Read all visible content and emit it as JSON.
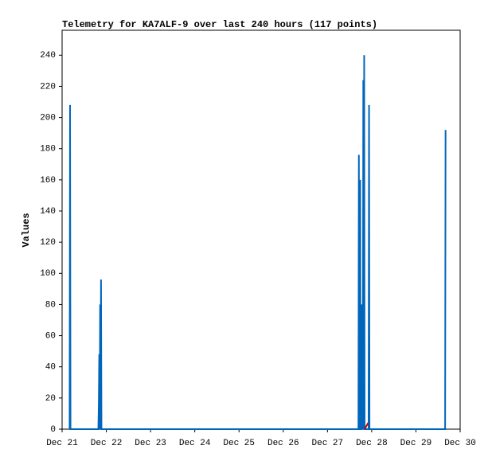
{
  "chart_data": {
    "type": "line",
    "title": "Telemetry for KA7ALF-9 over last 240 hours (117 points)",
    "y_label": "Values",
    "xlim": [
      0,
      9
    ],
    "xticks": [
      {
        "value": 0,
        "label": "Dec 21"
      },
      {
        "value": 1,
        "label": "Dec 22"
      },
      {
        "value": 2,
        "label": "Dec 23"
      },
      {
        "value": 3,
        "label": "Dec 24"
      },
      {
        "value": 4,
        "label": "Dec 25"
      },
      {
        "value": 5,
        "label": "Dec 26"
      },
      {
        "value": 6,
        "label": "Dec 27"
      },
      {
        "value": 7,
        "label": "Dec 28"
      },
      {
        "value": 8,
        "label": "Dec 29"
      },
      {
        "value": 9,
        "label": "Dec 30"
      }
    ],
    "ylim": [
      0,
      256
    ],
    "yticks": [
      0,
      20,
      40,
      60,
      80,
      100,
      120,
      140,
      160,
      180,
      200,
      220,
      240
    ],
    "series": [
      {
        "color": "#0066bb",
        "x": [
          0.17,
          0.18,
          0.19,
          0.82,
          0.83,
          0.84,
          0.85,
          0.86,
          0.87,
          0.88,
          0.89,
          6.7,
          6.71,
          6.72,
          6.73,
          6.74,
          6.75,
          6.77,
          6.78,
          6.8,
          6.81,
          6.82,
          6.83,
          6.84,
          6.93,
          6.94,
          6.95,
          8.66,
          8.67
        ],
        "values": [
          0,
          208,
          0,
          0,
          16,
          48,
          0,
          80,
          0,
          96,
          0,
          0,
          176,
          0,
          0,
          160,
          0,
          0,
          80,
          0,
          224,
          0,
          240,
          0,
          0,
          208,
          0,
          0,
          192
        ]
      },
      {
        "color": "#cc0000",
        "x": [
          6.84,
          6.88,
          6.92
        ],
        "values": [
          0,
          2,
          4
        ]
      }
    ]
  }
}
